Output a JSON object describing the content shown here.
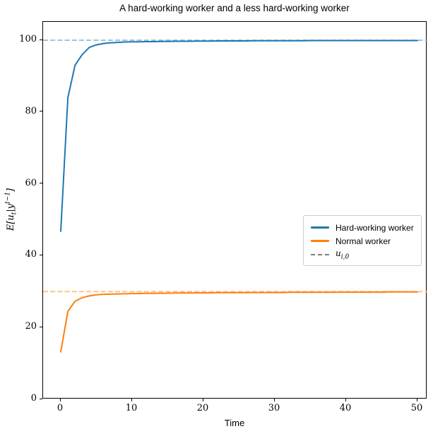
{
  "title": "A hard-working worker and a less hard-working worker",
  "axes": {
    "xlabel": "Time",
    "ylabel": {
      "p1": "E[u",
      "sub1": "t",
      "p2": "|y",
      "sup1": "t−1",
      "p3": "]"
    }
  },
  "legend": {
    "items": [
      {
        "label": "Hard-working worker",
        "color": "#1f77b4",
        "style": "solid"
      },
      {
        "label": "Normal worker",
        "color": "#ff7f0e",
        "style": "solid"
      },
      {
        "label_main": "u",
        "label_sub": "i,0",
        "color": "#7f7f7f",
        "style": "dashed"
      }
    ]
  },
  "colors": {
    "hard_working_line": "#1f77b4",
    "normal_line": "#ff7f0e",
    "reference_blue_dashed": "#8fbbda",
    "reference_orange_dashed": "#ffbf87",
    "legend_dashed_gray": "#7f7f7f",
    "frame": "#000000"
  },
  "chart_data": {
    "type": "line",
    "title": "A hard-working worker and a less hard-working worker",
    "xlabel": "Time",
    "ylabel": "E[u_t | y^{t-1}]",
    "xlim": [
      -2.5,
      51.5
    ],
    "ylim": [
      0,
      105
    ],
    "x_ticks": [
      0,
      10,
      20,
      30,
      40,
      50
    ],
    "y_ticks": [
      0,
      20,
      40,
      60,
      80,
      100
    ],
    "grid": false,
    "legend_position": "center right",
    "x": [
      0,
      1,
      2,
      3,
      4,
      5,
      6,
      7,
      8,
      9,
      10,
      11,
      12,
      13,
      14,
      15,
      16,
      17,
      18,
      19,
      20,
      21,
      22,
      23,
      24,
      25,
      26,
      27,
      28,
      29,
      30,
      31,
      32,
      33,
      34,
      35,
      36,
      37,
      38,
      39,
      40,
      41,
      42,
      43,
      44,
      45,
      46,
      47,
      48,
      49,
      50
    ],
    "series": [
      {
        "name": "Hard-working worker",
        "color": "#1f77b4",
        "style": "solid",
        "values": [
          46.8,
          84.0,
          93.0,
          96.0,
          98.0,
          98.7,
          99.1,
          99.3,
          99.4,
          99.5,
          99.55,
          99.55,
          99.6,
          99.6,
          99.65,
          99.65,
          99.7,
          99.7,
          99.7,
          99.75,
          99.75,
          99.75,
          99.8,
          99.8,
          99.8,
          99.8,
          99.8,
          99.85,
          99.85,
          99.85,
          99.85,
          99.85,
          99.85,
          99.85,
          99.85,
          99.9,
          99.9,
          99.9,
          99.9,
          99.9,
          99.9,
          99.9,
          99.9,
          99.9,
          99.9,
          99.9,
          99.9,
          99.9,
          99.9,
          99.9,
          99.9
        ]
      },
      {
        "name": "Normal worker",
        "color": "#ff7f0e",
        "style": "solid",
        "values": [
          13.2,
          24.5,
          27.3,
          28.3,
          28.8,
          29.1,
          29.25,
          29.3,
          29.35,
          29.4,
          29.45,
          29.45,
          29.5,
          29.5,
          29.55,
          29.55,
          29.6,
          29.6,
          29.6,
          29.65,
          29.65,
          29.65,
          29.7,
          29.7,
          29.7,
          29.7,
          29.7,
          29.75,
          29.75,
          29.75,
          29.75,
          29.75,
          29.8,
          29.8,
          29.8,
          29.8,
          29.8,
          29.8,
          29.8,
          29.85,
          29.85,
          29.85,
          29.85,
          29.85,
          29.85,
          29.85,
          29.9,
          29.9,
          29.9,
          29.9,
          29.9
        ]
      }
    ],
    "hlines": [
      {
        "y": 100,
        "color": "#8fbbda",
        "style": "dashed",
        "series": "u_i,0 hard-working"
      },
      {
        "y": 30,
        "color": "#ffbf87",
        "style": "dashed",
        "series": "u_i,0 normal"
      }
    ]
  }
}
